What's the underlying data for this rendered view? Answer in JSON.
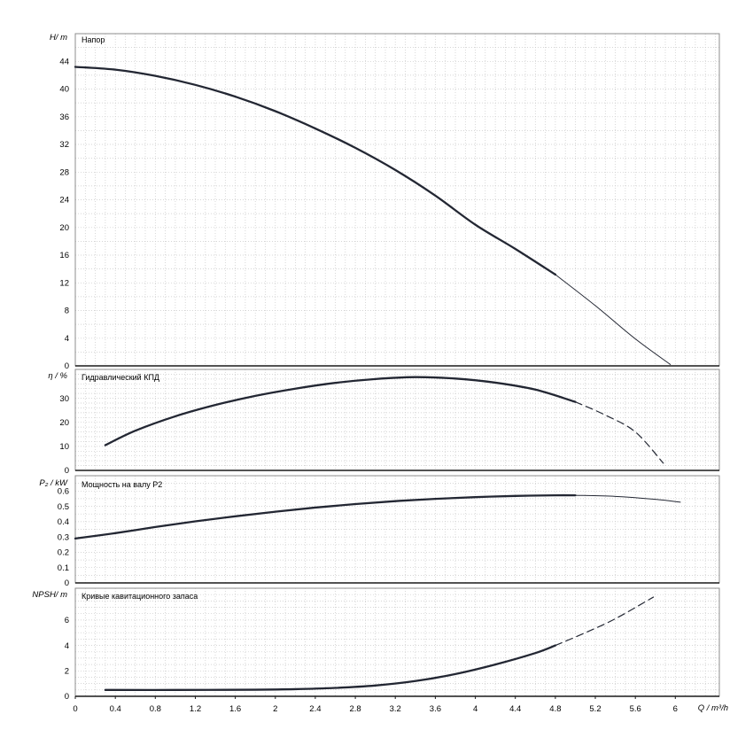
{
  "figure": {
    "xlabel": "Q / m³/h",
    "xlim": [
      0,
      6.44
    ],
    "xticks": [
      0,
      0.4,
      0.8,
      1.2,
      1.6,
      2,
      2.4,
      2.8,
      3.2,
      3.6,
      4,
      4.4,
      4.8,
      5.2,
      5.6,
      6
    ],
    "xtick_labels": [
      "0",
      "0.4",
      "0.8",
      "1.2",
      "1.6",
      "2",
      "2.4",
      "2.8",
      "3.2",
      "3.6",
      "4",
      "4.4",
      "4.8",
      "5.2",
      "5.6",
      "6"
    ],
    "x_grid_step": 0.1,
    "grid": true,
    "colors": {
      "curve": "#232733",
      "grid": "#c8c8c8",
      "frame": "#8c8c8c",
      "axis": "#1a1a1a",
      "text": "#000000",
      "background": "#ffffff"
    }
  },
  "chart_data": [
    {
      "type": "line",
      "title": "Напор",
      "ylabel": "H/ m",
      "ylim": [
        0,
        48
      ],
      "yticks": [
        44,
        40,
        36,
        32,
        28,
        24,
        20,
        16,
        12,
        8,
        4,
        0
      ],
      "y_grid_step": 2,
      "series": [
        {
          "name": "head-main",
          "style": "main",
          "points": [
            [
              0,
              43.2
            ],
            [
              0.4,
              42.8
            ],
            [
              0.8,
              41.9
            ],
            [
              1.2,
              40.6
            ],
            [
              1.6,
              38.9
            ],
            [
              2.0,
              36.8
            ],
            [
              2.4,
              34.3
            ],
            [
              2.8,
              31.5
            ],
            [
              3.2,
              28.3
            ],
            [
              3.6,
              24.6
            ],
            [
              4.0,
              20.4
            ],
            [
              4.4,
              16.9
            ],
            [
              4.8,
              13.2
            ]
          ]
        },
        {
          "name": "head-extended",
          "style": "thin",
          "points": [
            [
              4.8,
              13.2
            ],
            [
              5.2,
              8.7
            ],
            [
              5.6,
              3.9
            ],
            [
              5.95,
              0.2
            ]
          ]
        }
      ]
    },
    {
      "type": "line",
      "title": "Гидравлический КПД",
      "ylabel": "η / %",
      "ylim": [
        0,
        42
      ],
      "yticks": [
        30,
        20,
        10,
        0
      ],
      "y_grid_step": 2,
      "series": [
        {
          "name": "efficiency-main",
          "style": "main",
          "points": [
            [
              0.3,
              10.5
            ],
            [
              0.6,
              16.5
            ],
            [
              1.0,
              22.5
            ],
            [
              1.4,
              27.2
            ],
            [
              1.8,
              31.0
            ],
            [
              2.2,
              34.0
            ],
            [
              2.6,
              36.4
            ],
            [
              3.0,
              38.0
            ],
            [
              3.4,
              38.8
            ],
            [
              3.8,
              38.2
            ],
            [
              4.2,
              36.5
            ],
            [
              4.6,
              33.6
            ],
            [
              5.0,
              28.5
            ]
          ]
        },
        {
          "name": "efficiency-extended",
          "style": "dashed",
          "points": [
            [
              5.0,
              28.5
            ],
            [
              5.3,
              23.0
            ],
            [
              5.6,
              16.0
            ],
            [
              5.88,
              3.0
            ]
          ]
        }
      ]
    },
    {
      "type": "line",
      "title": "Мощность на валу P2",
      "ylabel": "P₂ / kW",
      "ylim": [
        0,
        0.7
      ],
      "yticks": [
        0.6,
        0.5,
        0.4,
        0.3,
        0.2,
        0.1,
        0
      ],
      "y_grid_step": 0.05,
      "series": [
        {
          "name": "shaft-power-main",
          "style": "main",
          "points": [
            [
              0,
              0.29
            ],
            [
              0.4,
              0.325
            ],
            [
              0.8,
              0.365
            ],
            [
              1.2,
              0.402
            ],
            [
              1.6,
              0.435
            ],
            [
              2.0,
              0.465
            ],
            [
              2.4,
              0.492
            ],
            [
              2.8,
              0.515
            ],
            [
              3.2,
              0.534
            ],
            [
              3.6,
              0.549
            ],
            [
              4.0,
              0.56
            ],
            [
              4.4,
              0.568
            ],
            [
              4.8,
              0.572
            ],
            [
              5.0,
              0.572
            ]
          ]
        },
        {
          "name": "shaft-power-extended",
          "style": "thin",
          "points": [
            [
              5.0,
              0.572
            ],
            [
              5.4,
              0.565
            ],
            [
              5.8,
              0.546
            ],
            [
              6.05,
              0.527
            ]
          ]
        }
      ]
    },
    {
      "type": "line",
      "title": "Кривые кавитационного запаса",
      "ylabel": "NPSH/ m",
      "ylim": [
        0,
        8.5
      ],
      "yticks": [
        6,
        4,
        2,
        0
      ],
      "y_grid_step": 0.5,
      "series": [
        {
          "name": "npsh-main",
          "style": "main",
          "points": [
            [
              0.3,
              0.5
            ],
            [
              1.0,
              0.5
            ],
            [
              1.8,
              0.52
            ],
            [
              2.2,
              0.56
            ],
            [
              2.6,
              0.66
            ],
            [
              3.0,
              0.85
            ],
            [
              3.4,
              1.2
            ],
            [
              3.8,
              1.75
            ],
            [
              4.2,
              2.5
            ],
            [
              4.6,
              3.4
            ],
            [
              4.8,
              4.0
            ]
          ]
        },
        {
          "name": "npsh-extended",
          "style": "dashed",
          "points": [
            [
              4.8,
              4.0
            ],
            [
              5.1,
              5.0
            ],
            [
              5.4,
              6.1
            ],
            [
              5.78,
              7.8
            ]
          ]
        }
      ]
    }
  ]
}
